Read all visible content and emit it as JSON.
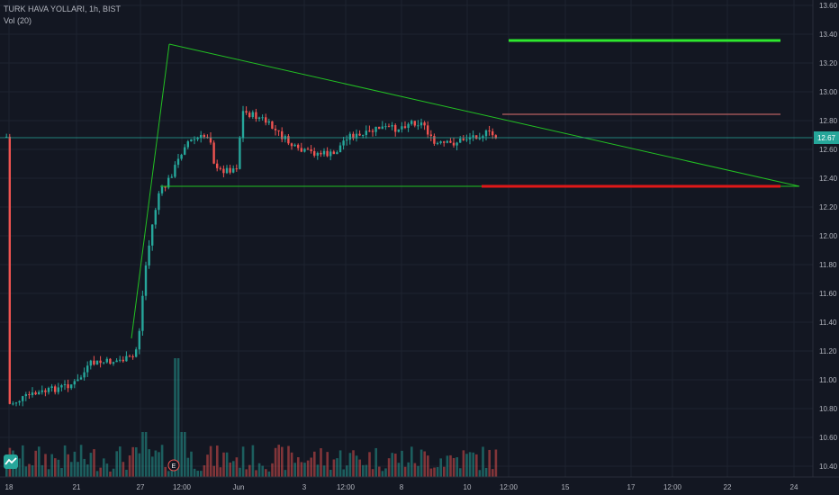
{
  "legend": {
    "symbol_line": "TURK HAVA YOLLARI, 1h, BIST",
    "volume_line": "Vol (20)"
  },
  "price_axis": {
    "ticks": [
      "13.60",
      "13.40",
      "13.20",
      "13.00",
      "12.80",
      "12.60",
      "12.40",
      "12.20",
      "12.00",
      "11.80",
      "11.60",
      "11.40",
      "11.20",
      "11.00",
      "10.80",
      "10.60",
      "10.40"
    ],
    "current_price": "12.67"
  },
  "time_axis": {
    "ticks": [
      "18",
      "21",
      "27",
      "12:00",
      "Jun",
      "3",
      "12:00",
      "8",
      "10",
      "12:00",
      "15",
      "17",
      "12:00",
      "22",
      "24"
    ]
  },
  "earnings_marker": "E",
  "colors": {
    "background": "#131722",
    "grid": "#1e2330",
    "up": "#26a69a",
    "down": "#ef5350",
    "trendline": "#22c022",
    "target_green": "#2ee82e",
    "target_red": "#e01818",
    "current_line": "#26a69a"
  },
  "icons": [
    "tradingview-logo-icon"
  ]
}
